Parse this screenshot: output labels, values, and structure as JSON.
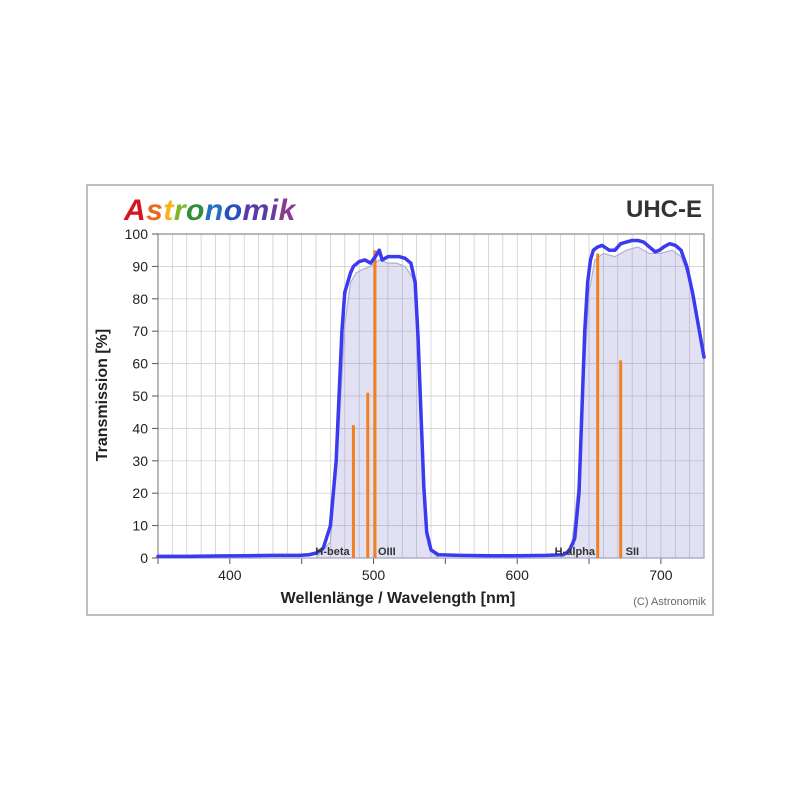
{
  "brand": {
    "text": "Astronomik",
    "colors": [
      "#d4171e",
      "#e86c1a",
      "#f2b61c",
      "#7ab929",
      "#2f8f3a",
      "#2a6fbf",
      "#2a4fbf",
      "#5a3aa6",
      "#6b3a9e",
      "#8a3a8f",
      "#a3338a"
    ]
  },
  "filter_label": "UHC-E",
  "y_axis_label": "Transmission [%]",
  "x_axis_label": "Wellenlänge / Wavelength [nm]",
  "copyright": "(C) Astronomik",
  "chart": {
    "type": "line",
    "xlim": [
      350,
      730
    ],
    "ylim": [
      0,
      100
    ],
    "xtick_step": 50,
    "xtick_labels_at": [
      400,
      500,
      600,
      700
    ],
    "ytick_step": 10,
    "grid_color": "#c8c8c8",
    "background_color": "#ffffff",
    "curve_color": "#3a3af0",
    "curve_width": 3.5,
    "fill_color": "rgba(120,120,200,0.22)",
    "fill_curve_color": "#b0b0d0",
    "emission_color": "#f08020",
    "emission_width": 3,
    "curve_points": [
      [
        350,
        0.5
      ],
      [
        370,
        0.5
      ],
      [
        390,
        0.6
      ],
      [
        410,
        0.7
      ],
      [
        430,
        0.8
      ],
      [
        448,
        0.8
      ],
      [
        455,
        1.0
      ],
      [
        460,
        1.5
      ],
      [
        465,
        3
      ],
      [
        470,
        10
      ],
      [
        474,
        30
      ],
      [
        476,
        50
      ],
      [
        478,
        70
      ],
      [
        480,
        82
      ],
      [
        484,
        88
      ],
      [
        486,
        90
      ],
      [
        490,
        91.5
      ],
      [
        494,
        92
      ],
      [
        498,
        91
      ],
      [
        502,
        93.5
      ],
      [
        504,
        95
      ],
      [
        506,
        92
      ],
      [
        510,
        93
      ],
      [
        514,
        93
      ],
      [
        518,
        93
      ],
      [
        522,
        92.5
      ],
      [
        526,
        91
      ],
      [
        529,
        85
      ],
      [
        531,
        68
      ],
      [
        533,
        45
      ],
      [
        535,
        22
      ],
      [
        537,
        8
      ],
      [
        540,
        2.5
      ],
      [
        545,
        1.0
      ],
      [
        560,
        0.8
      ],
      [
        580,
        0.7
      ],
      [
        600,
        0.7
      ],
      [
        620,
        0.8
      ],
      [
        632,
        1.0
      ],
      [
        636,
        2
      ],
      [
        640,
        6
      ],
      [
        643,
        20
      ],
      [
        645,
        45
      ],
      [
        647,
        70
      ],
      [
        649,
        85
      ],
      [
        651,
        92
      ],
      [
        653,
        95
      ],
      [
        656,
        96
      ],
      [
        659,
        96.5
      ],
      [
        664,
        95
      ],
      [
        668,
        95
      ],
      [
        672,
        97
      ],
      [
        676,
        97.5
      ],
      [
        680,
        98
      ],
      [
        684,
        98
      ],
      [
        688,
        97.5
      ],
      [
        692,
        96
      ],
      [
        696,
        94.5
      ],
      [
        699,
        95
      ],
      [
        702,
        96
      ],
      [
        706,
        97
      ],
      [
        710,
        96.5
      ],
      [
        714,
        95
      ],
      [
        718,
        90
      ],
      [
        722,
        82
      ],
      [
        726,
        72
      ],
      [
        730,
        62
      ]
    ],
    "fill_points": [
      [
        350,
        0
      ],
      [
        460,
        0
      ],
      [
        470,
        5
      ],
      [
        476,
        40
      ],
      [
        480,
        72
      ],
      [
        484,
        85
      ],
      [
        488,
        88
      ],
      [
        492,
        89
      ],
      [
        498,
        90
      ],
      [
        504,
        92
      ],
      [
        510,
        91
      ],
      [
        516,
        91
      ],
      [
        522,
        90
      ],
      [
        528,
        86
      ],
      [
        532,
        55
      ],
      [
        535,
        20
      ],
      [
        538,
        4
      ],
      [
        545,
        0
      ],
      [
        630,
        0
      ],
      [
        638,
        4
      ],
      [
        643,
        25
      ],
      [
        647,
        60
      ],
      [
        650,
        82
      ],
      [
        654,
        92
      ],
      [
        660,
        94
      ],
      [
        668,
        93
      ],
      [
        676,
        95
      ],
      [
        684,
        96
      ],
      [
        692,
        94
      ],
      [
        700,
        94
      ],
      [
        708,
        95
      ],
      [
        714,
        93
      ],
      [
        720,
        86
      ],
      [
        726,
        72
      ],
      [
        730,
        62
      ]
    ],
    "emission_lines": [
      {
        "x": 486,
        "height": 41,
        "label": "H-beta",
        "label_dx": -38
      },
      {
        "x": 496,
        "height": 51,
        "label": "",
        "label_dx": 0
      },
      {
        "x": 501,
        "height": 95,
        "label": "OIII",
        "label_dx": 3
      },
      {
        "x": 656,
        "height": 94,
        "label": "H-alpha",
        "label_dx": -43
      },
      {
        "x": 672,
        "height": 61,
        "label": "SII",
        "label_dx": 5
      }
    ]
  }
}
